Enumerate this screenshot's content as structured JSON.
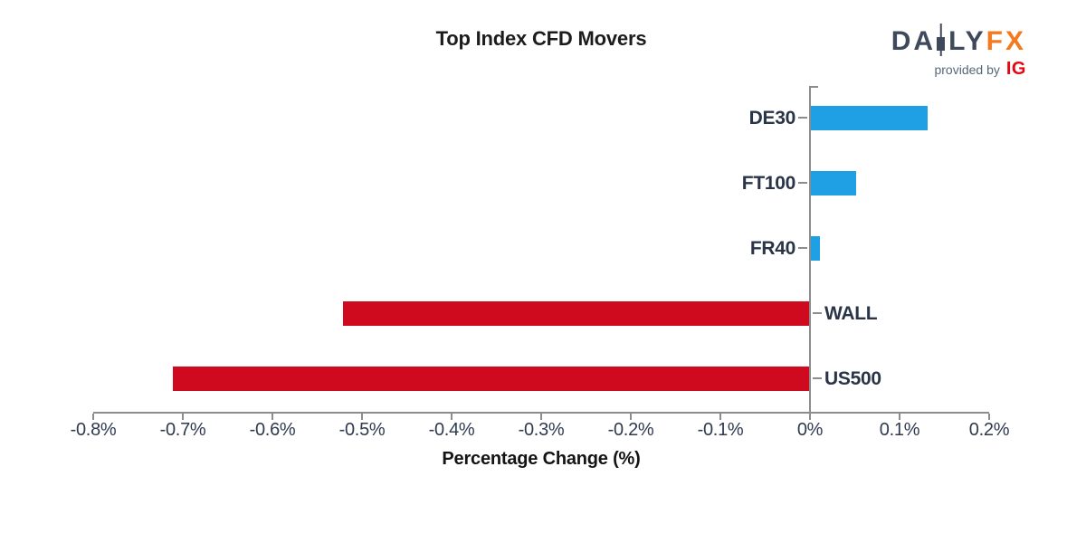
{
  "title": "Top Index CFD Movers",
  "logo": {
    "brand_prefix": "DA",
    "brand_mid": "LY",
    "brand_suffix": "FX",
    "candlestick_icon": "candlestick-icon",
    "tagline": "provided by",
    "partner": "IG",
    "colors": {
      "brand_slate": "#3E4A5B",
      "brand_orange": "#F4791F",
      "tagline_gray": "#56677B",
      "partner_red": "#E30613"
    }
  },
  "chart_data": {
    "type": "bar",
    "orientation": "horizontal",
    "title": "Top Index CFD Movers",
    "xlabel": "Percentage Change (%)",
    "ylabel": "",
    "categories": [
      "DE30",
      "FT100",
      "FR40",
      "WALL",
      "US500"
    ],
    "values": [
      0.13,
      0.05,
      0.01,
      -0.52,
      -0.71
    ],
    "xlim": [
      -0.8,
      0.2
    ],
    "xticks": [
      -0.8,
      -0.7,
      -0.6,
      -0.5,
      -0.4,
      -0.3,
      -0.2,
      -0.1,
      0,
      0.1,
      0.2
    ],
    "xtick_labels": [
      "-0.8%",
      "-0.7%",
      "-0.6%",
      "-0.5%",
      "-0.4%",
      "-0.3%",
      "-0.2%",
      "-0.1%",
      "0%",
      "0.1%",
      "0.2%"
    ],
    "grid": false,
    "legend": null,
    "positive_color": "#1F9FE4",
    "negative_color": "#CF0A1E",
    "axis_color": "#8c8c8c",
    "tick_label_color": "#2E3A4F",
    "category_label_color": "#2A3447"
  }
}
